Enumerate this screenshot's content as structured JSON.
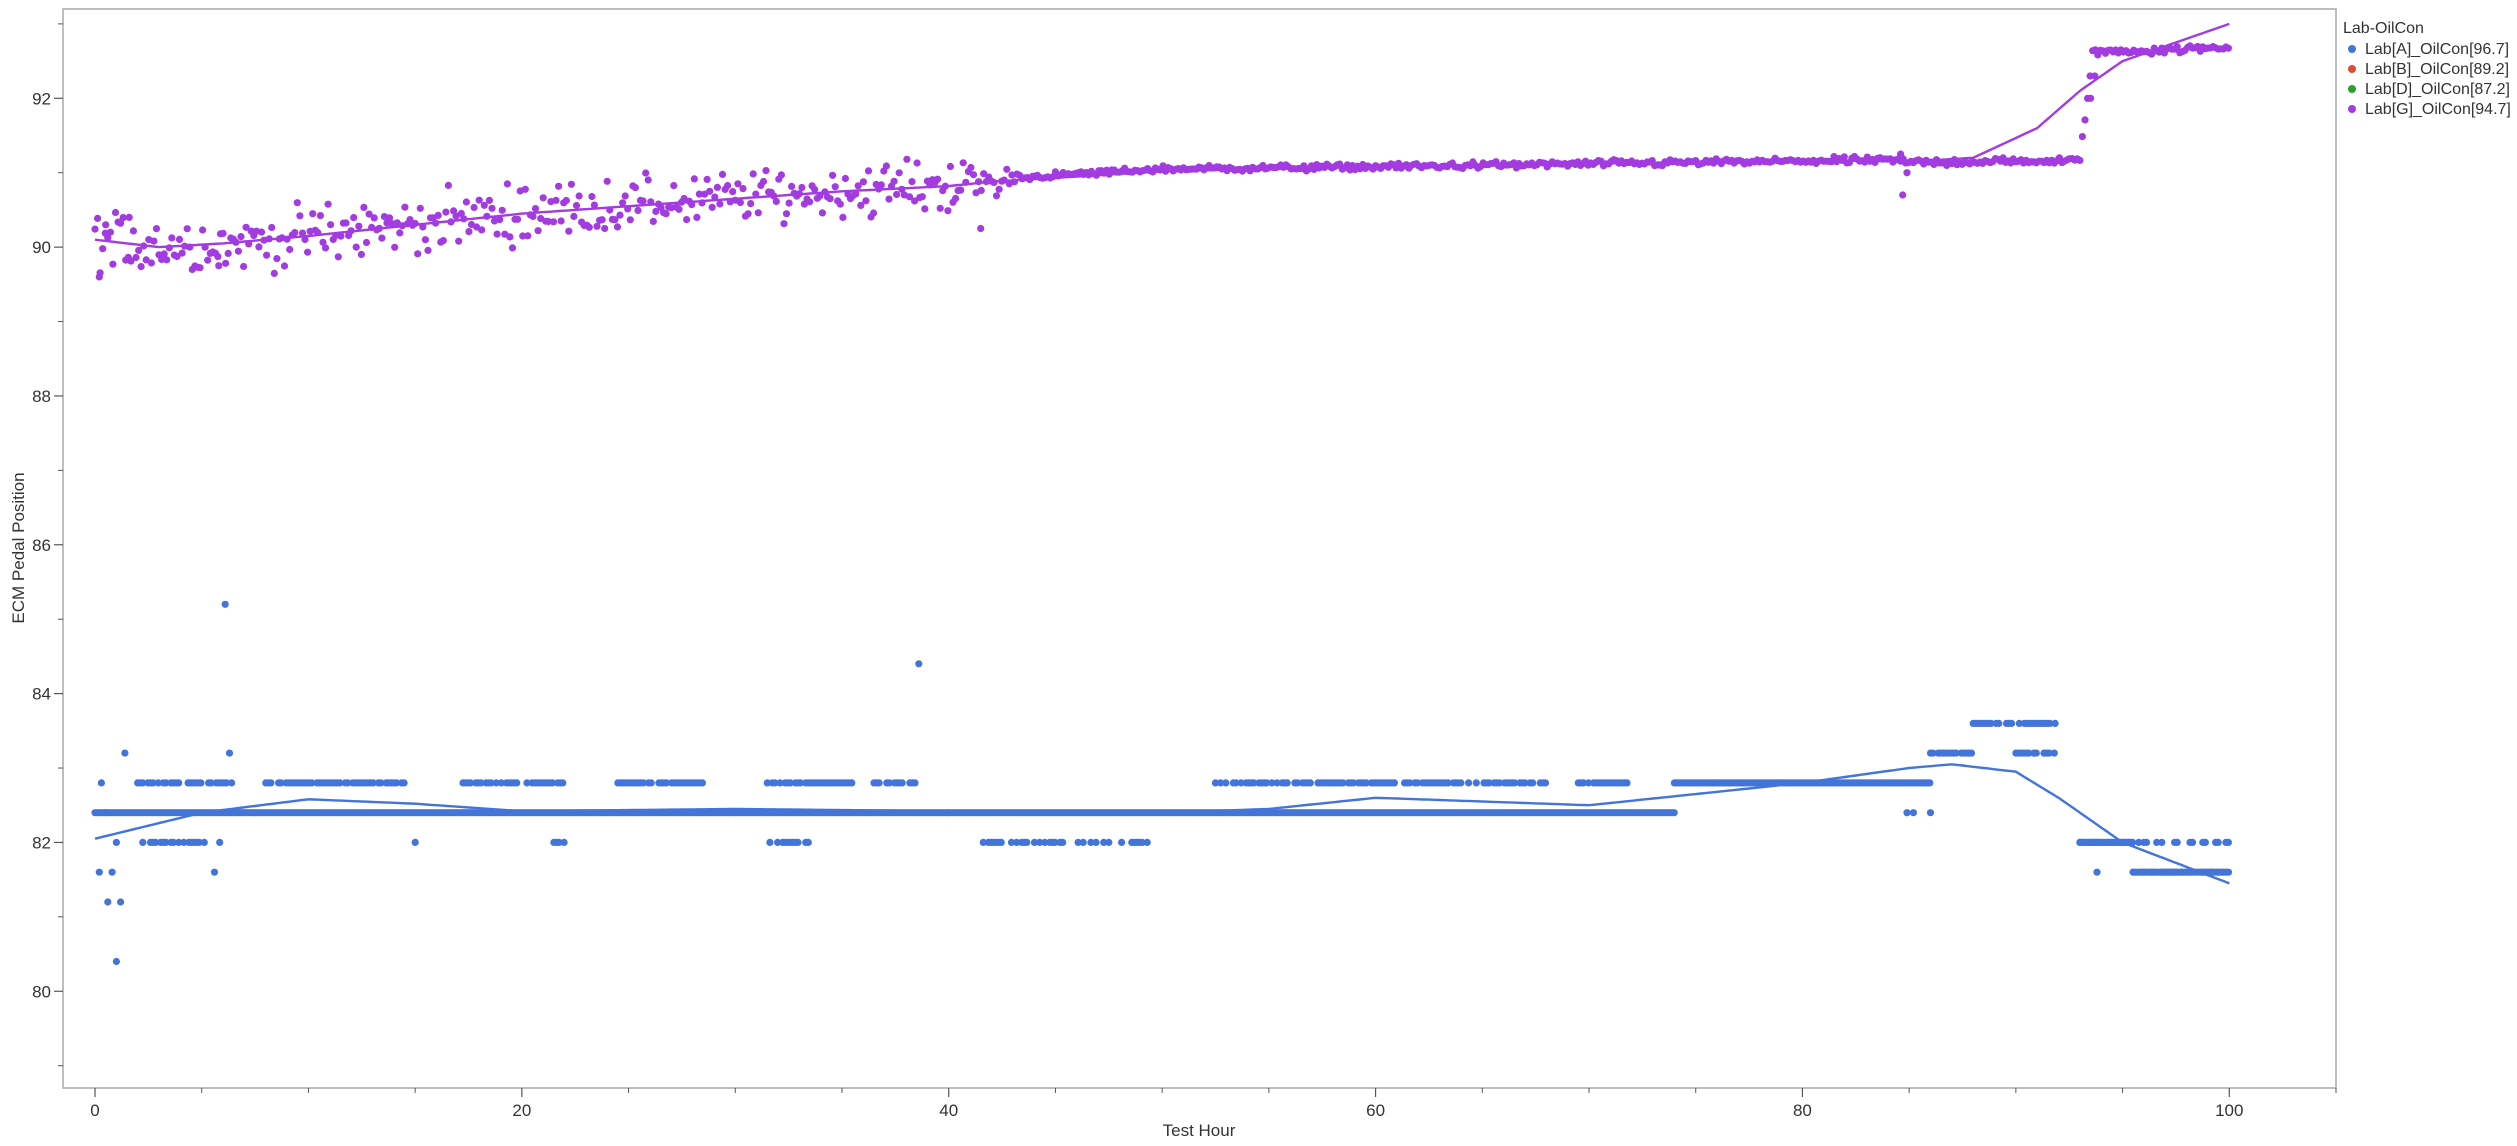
{
  "chart_data": {
    "type": "scatter",
    "xlabel": "Test Hour",
    "ylabel": "ECM Pedal Position",
    "xlim": [
      -1.5,
      105
    ],
    "ylim": [
      78.7,
      93.2
    ],
    "xticks": [
      0,
      20,
      40,
      60,
      80,
      100
    ],
    "yticks": [
      80,
      82,
      84,
      86,
      88,
      90,
      92
    ],
    "grid": false,
    "legend": {
      "title": "Lab-OilCon",
      "placement": "right"
    },
    "series": [
      {
        "name": "Lab[A]_OilCon[96.7]",
        "color": "#4374d9",
        "smoother": [
          [
            0,
            82.05
          ],
          [
            5,
            82.4
          ],
          [
            10,
            82.58
          ],
          [
            15,
            82.52
          ],
          [
            20,
            82.42
          ],
          [
            30,
            82.45
          ],
          [
            40,
            82.42
          ],
          [
            50,
            82.4
          ],
          [
            55,
            82.45
          ],
          [
            60,
            82.6
          ],
          [
            65,
            82.55
          ],
          [
            70,
            82.5
          ],
          [
            75,
            82.65
          ],
          [
            80,
            82.8
          ],
          [
            85,
            83.0
          ],
          [
            87,
            83.05
          ],
          [
            90,
            82.95
          ],
          [
            92,
            82.6
          ],
          [
            95,
            82.0
          ],
          [
            100,
            81.45
          ]
        ],
        "levels": [
          [
            0,
            9,
            82.4
          ],
          [
            9,
            18,
            82.4
          ],
          [
            18,
            30,
            82.4
          ],
          [
            30,
            40,
            82.4
          ],
          [
            40,
            53,
            82.4
          ],
          [
            53,
            70,
            82.4
          ],
          [
            70,
            74,
            82.4
          ],
          [
            74,
            86,
            82.8
          ],
          [
            93,
            95.5,
            82.0
          ],
          [
            95.5,
            100,
            81.6
          ]
        ],
        "upper_bands": [
          [
            2,
            4,
            82.8
          ],
          [
            4,
            6.5,
            82.8
          ],
          [
            8,
            14.5,
            82.8
          ],
          [
            17,
            22,
            82.8
          ],
          [
            24.5,
            28.5,
            82.8
          ],
          [
            31.5,
            35.5,
            82.8
          ],
          [
            36.5,
            38.5,
            82.8
          ],
          [
            52.5,
            58,
            82.8
          ],
          [
            58,
            68,
            82.8
          ],
          [
            69.5,
            72,
            82.8
          ],
          [
            86,
            88,
            83.2
          ],
          [
            88,
            92,
            83.6
          ],
          [
            90,
            92,
            83.2
          ]
        ],
        "lower_bands": [
          [
            2,
            6,
            82.0
          ],
          [
            15,
            15.2,
            82.0
          ],
          [
            21.5,
            22.2,
            82.0
          ],
          [
            31.5,
            33.5,
            82.0
          ],
          [
            41.5,
            49.5,
            82.0
          ],
          [
            93,
            100,
            82.0
          ],
          [
            95.5,
            100,
            81.6
          ]
        ],
        "outliers": [
          [
            6.1,
            85.2
          ],
          [
            38.6,
            84.4
          ],
          [
            1.0,
            80.4
          ],
          [
            0.6,
            81.2
          ],
          [
            1.2,
            81.2
          ],
          [
            0.2,
            81.6
          ],
          [
            0.8,
            81.6
          ],
          [
            5.6,
            81.6
          ],
          [
            1.0,
            82.0
          ],
          [
            0.5,
            82.4
          ],
          [
            0.3,
            82.8
          ],
          [
            1.4,
            83.2
          ],
          [
            6.3,
            83.2
          ],
          [
            85.2,
            82.4
          ],
          [
            86.0,
            82.4
          ],
          [
            93.8,
            81.6
          ],
          [
            84.9,
            82.4
          ]
        ]
      },
      {
        "name": "Lab[B]_OilCon[89.2]",
        "color": "#e34a33",
        "smoother": [],
        "levels": [],
        "upper_bands": [],
        "lower_bands": [],
        "outliers": []
      },
      {
        "name": "Lab[D]_OilCon[87.2]",
        "color": "#2ca02c",
        "smoother": [],
        "levels": [],
        "upper_bands": [],
        "lower_bands": [],
        "outliers": []
      },
      {
        "name": "Lab[G]_OilCon[94.7]",
        "color": "#a23be0",
        "smoother": [
          [
            0,
            90.1
          ],
          [
            3,
            90.0
          ],
          [
            6,
            90.05
          ],
          [
            10,
            90.15
          ],
          [
            15,
            90.3
          ],
          [
            20,
            90.45
          ],
          [
            25,
            90.55
          ],
          [
            30,
            90.65
          ],
          [
            35,
            90.75
          ],
          [
            40,
            90.82
          ],
          [
            42,
            90.88
          ],
          [
            45,
            90.93
          ],
          [
            50,
            91.02
          ],
          [
            60,
            91.08
          ],
          [
            70,
            91.12
          ],
          [
            80,
            91.17
          ],
          [
            85,
            91.15
          ],
          [
            88,
            91.2
          ],
          [
            91,
            91.6
          ],
          [
            93,
            92.1
          ],
          [
            95,
            92.5
          ],
          [
            98,
            92.8
          ],
          [
            100,
            93.0
          ]
        ],
        "trend": [
          [
            0,
            90.1
          ],
          [
            3,
            90.02
          ],
          [
            6,
            90.03
          ],
          [
            10,
            90.15
          ],
          [
            15,
            90.3
          ],
          [
            20,
            90.45
          ],
          [
            25,
            90.56
          ],
          [
            30,
            90.66
          ],
          [
            35,
            90.75
          ],
          [
            40,
            90.83
          ],
          [
            42,
            90.86
          ],
          [
            43,
            90.93
          ],
          [
            50,
            91.05
          ],
          [
            60,
            91.08
          ],
          [
            70,
            91.12
          ],
          [
            84,
            91.17
          ],
          [
            85,
            91.14
          ],
          [
            93,
            91.16
          ],
          [
            93.6,
            92.62
          ],
          [
            100,
            92.68
          ]
        ],
        "noise": [
          [
            0,
            0.25
          ],
          [
            42,
            0.2
          ],
          [
            43.5,
            0.025
          ],
          [
            93.5,
            0.03
          ],
          [
            100,
            0.03
          ]
        ],
        "outliers": [
          [
            0.2,
            89.6
          ],
          [
            0.5,
            90.3
          ],
          [
            1.6,
            90.4
          ],
          [
            5.8,
            89.75
          ],
          [
            41.5,
            90.25
          ],
          [
            84.7,
            90.7
          ],
          [
            84.9,
            91.0
          ],
          [
            93.5,
            92.0
          ],
          [
            93.7,
            92.3
          ],
          [
            84.6,
            91.25
          ]
        ]
      }
    ]
  }
}
